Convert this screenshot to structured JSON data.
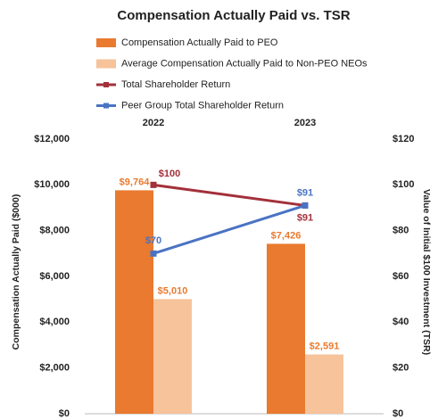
{
  "chart_data": {
    "type": "bar_line",
    "title": "Compensation Actually Paid vs. TSR",
    "categories": [
      "2022",
      "2023"
    ],
    "y_label": "Compensation Actually Paid ($000)",
    "y2_label": "Value of Initial $100 Investment (TSR)",
    "ylim": [
      0,
      12000
    ],
    "yticks": [
      {
        "value": 0,
        "label": "$0"
      },
      {
        "value": 2000,
        "label": "$2,000"
      },
      {
        "value": 4000,
        "label": "$4,000"
      },
      {
        "value": 6000,
        "label": "$6,000"
      },
      {
        "value": 8000,
        "label": "$8,000"
      },
      {
        "value": 10000,
        "label": "$10,000"
      },
      {
        "value": 12000,
        "label": "$12,000"
      }
    ],
    "y2lim": [
      0,
      120
    ],
    "y2ticks": [
      {
        "value": 0,
        "label": "$0"
      },
      {
        "value": 20,
        "label": "$20"
      },
      {
        "value": 40,
        "label": "$40"
      },
      {
        "value": 60,
        "label": "$60"
      },
      {
        "value": 80,
        "label": "$80"
      },
      {
        "value": 100,
        "label": "$100"
      },
      {
        "value": 120,
        "label": "$120"
      }
    ],
    "series": [
      {
        "name": "Compensation Actually Paid to PEO",
        "type": "bar",
        "color": "#e97a2f",
        "values": [
          9764,
          7426
        ],
        "value_labels": [
          "$9,764",
          "$7,426"
        ]
      },
      {
        "name": "Average Compensation Actually Paid to Non-PEO NEOs",
        "type": "bar",
        "color": "#f6c39b",
        "values": [
          5010,
          2591
        ],
        "value_labels": [
          "$5,010",
          "$2,591"
        ]
      },
      {
        "name": "Total Shareholder Return",
        "type": "line",
        "axis": "y2",
        "color": "#a3303a",
        "values": [
          100,
          91
        ],
        "value_labels": [
          "$100",
          "$91"
        ]
      },
      {
        "name": "Peer Group Total Shareholder Return",
        "type": "line",
        "axis": "y2",
        "color": "#4a73c3",
        "values": [
          70,
          91
        ],
        "value_labels": [
          "$70",
          "$91"
        ]
      }
    ]
  }
}
